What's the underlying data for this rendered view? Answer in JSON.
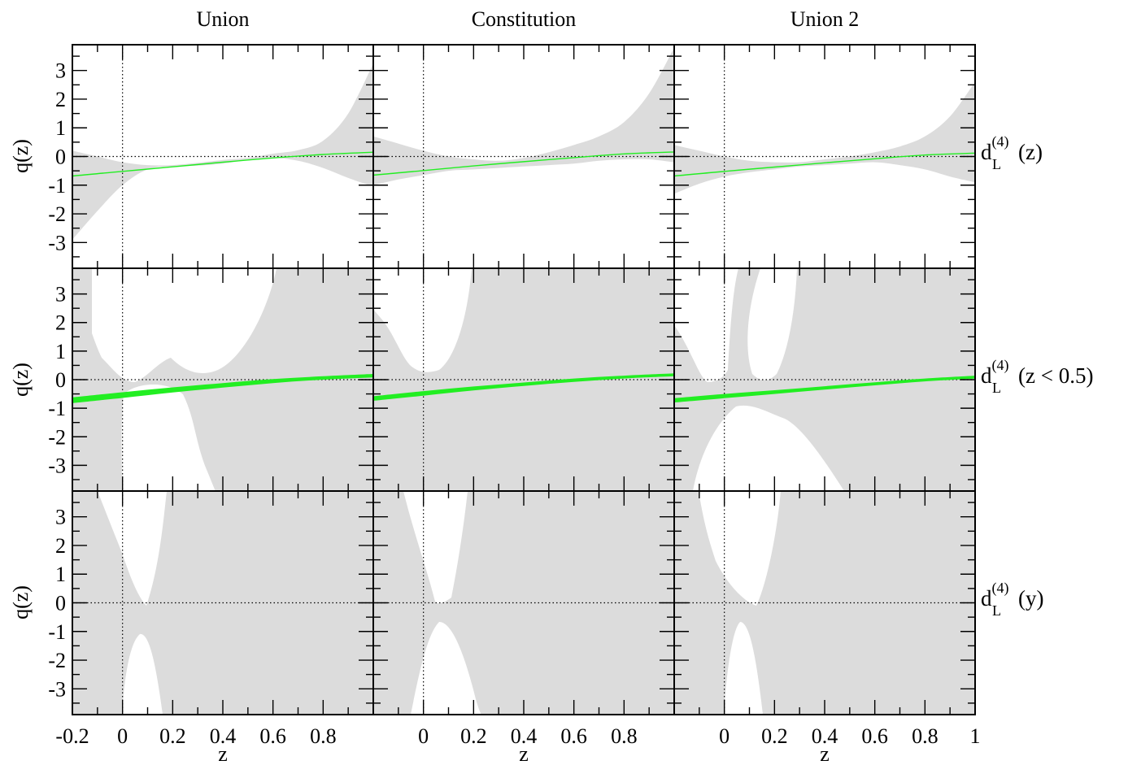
{
  "figure": {
    "column_titles": [
      "Union",
      "Constitution",
      "Union 2"
    ],
    "row_labels": [
      {
        "main": "d",
        "sub": "L",
        "sup": "(4)",
        "arg": "(z)"
      },
      {
        "main": "d",
        "sub": "L",
        "sup": "(4)",
        "arg": "(z < 0.5)"
      },
      {
        "main": "d",
        "sub": "L",
        "sup": "(4)",
        "arg": "(y)"
      }
    ],
    "ylabel": "q(z)",
    "xlabel": "z",
    "x_tick_labels": [
      [
        "-0.2",
        "0",
        "0.2",
        "0.4",
        "0.6",
        "0.8"
      ],
      [
        "0",
        "0.2",
        "0.4",
        "0.6",
        "0.8"
      ],
      [
        "0",
        "0.2",
        "0.4",
        "0.6",
        "0.8",
        "1"
      ]
    ],
    "y_tick_labels": [
      "3",
      "2",
      "1",
      "0",
      "-1",
      "-2",
      "-3"
    ]
  },
  "chart_data": {
    "type": "area",
    "layout": "3x3 grid",
    "xlim": [
      -0.2,
      1.0
    ],
    "ylim": [
      -3.9,
      3.9
    ],
    "x_major_ticks": [
      -0.2,
      0,
      0.2,
      0.4,
      0.6,
      0.8,
      1.0
    ],
    "y_major_ticks": [
      -3,
      -2,
      -1,
      0,
      1,
      2,
      3
    ],
    "reference_lines": {
      "x": 0,
      "y": 0
    },
    "colors": {
      "band": "#dcdcdc",
      "fit": "#22ee22",
      "axes": "#000000"
    },
    "panels": [
      {
        "row": 0,
        "col": 0,
        "band": [
          [
            -0.2,
            -2.9,
            0.2
          ],
          [
            -0.1,
            -1.9,
            0.0
          ],
          [
            0.0,
            -1.0,
            -0.2
          ],
          [
            0.1,
            -0.45,
            -0.3
          ],
          [
            0.2,
            -0.35,
            -0.3
          ],
          [
            0.3,
            -0.32,
            -0.22
          ],
          [
            0.4,
            -0.25,
            -0.12
          ],
          [
            0.5,
            -0.12,
            -0.05
          ],
          [
            0.6,
            -0.05,
            0.1
          ],
          [
            0.7,
            -0.15,
            0.22
          ],
          [
            0.8,
            -0.4,
            0.55
          ],
          [
            0.9,
            -0.75,
            1.5
          ],
          [
            1.0,
            -1.05,
            3.25
          ]
        ],
        "fit": [
          [
            -0.2,
            -0.7,
            -0.66
          ],
          [
            0.0,
            -0.54,
            -0.5
          ],
          [
            0.2,
            -0.38,
            -0.34
          ],
          [
            0.4,
            -0.22,
            -0.18
          ],
          [
            0.6,
            -0.07,
            -0.03
          ],
          [
            0.8,
            0.05,
            0.09
          ],
          [
            1.0,
            0.13,
            0.17
          ]
        ]
      },
      {
        "row": 0,
        "col": 1,
        "band": [
          [
            -0.2,
            -1.0,
            0.7
          ],
          [
            -0.1,
            -0.8,
            0.45
          ],
          [
            0.0,
            -0.65,
            0.2
          ],
          [
            0.1,
            -0.5,
            0.0
          ],
          [
            0.2,
            -0.45,
            -0.1
          ],
          [
            0.3,
            -0.4,
            -0.15
          ],
          [
            0.4,
            -0.35,
            -0.05
          ],
          [
            0.5,
            -0.3,
            0.15
          ],
          [
            0.6,
            -0.25,
            0.4
          ],
          [
            0.7,
            -0.15,
            0.7
          ],
          [
            0.8,
            -0.1,
            1.2
          ],
          [
            0.9,
            -0.1,
            2.2
          ],
          [
            1.0,
            -0.2,
            3.8
          ]
        ],
        "fit": [
          [
            -0.2,
            -0.67,
            -0.63
          ],
          [
            0.0,
            -0.51,
            -0.47
          ],
          [
            0.2,
            -0.35,
            -0.31
          ],
          [
            0.4,
            -0.2,
            -0.16
          ],
          [
            0.6,
            -0.06,
            -0.02
          ],
          [
            0.8,
            0.07,
            0.11
          ],
          [
            1.0,
            0.14,
            0.18
          ]
        ]
      },
      {
        "row": 0,
        "col": 2,
        "band": [
          [
            -0.2,
            -1.3,
            0.4
          ],
          [
            -0.1,
            -0.95,
            0.2
          ],
          [
            0.0,
            -0.7,
            0.0
          ],
          [
            0.1,
            -0.55,
            -0.15
          ],
          [
            0.2,
            -0.45,
            -0.2
          ],
          [
            0.3,
            -0.35,
            -0.2
          ],
          [
            0.4,
            -0.3,
            -0.1
          ],
          [
            0.5,
            -0.25,
            0.0
          ],
          [
            0.6,
            -0.2,
            0.15
          ],
          [
            0.7,
            -0.3,
            0.35
          ],
          [
            0.8,
            -0.45,
            0.7
          ],
          [
            0.9,
            -0.7,
            1.4
          ],
          [
            1.0,
            -0.9,
            2.6
          ]
        ],
        "fit": [
          [
            -0.2,
            -0.7,
            -0.66
          ],
          [
            0.0,
            -0.54,
            -0.5
          ],
          [
            0.2,
            -0.39,
            -0.35
          ],
          [
            0.4,
            -0.24,
            -0.2
          ],
          [
            0.6,
            -0.1,
            -0.06
          ],
          [
            0.8,
            0.03,
            0.07
          ],
          [
            1.0,
            0.1,
            0.14
          ]
        ]
      },
      {
        "row": 1,
        "col": 0,
        "band": "excluded-region",
        "fit": [
          [
            -0.2,
            -0.82,
            -0.62
          ],
          [
            0.0,
            -0.64,
            -0.44
          ],
          [
            0.2,
            -0.45,
            -0.27
          ],
          [
            0.4,
            -0.28,
            -0.12
          ],
          [
            0.6,
            -0.12,
            0.02
          ],
          [
            0.8,
            0.0,
            0.12
          ],
          [
            1.0,
            0.08,
            0.2
          ]
        ]
      },
      {
        "row": 1,
        "col": 1,
        "band": "excluded-region",
        "fit": [
          [
            -0.2,
            -0.74,
            -0.58
          ],
          [
            0.0,
            -0.56,
            -0.4
          ],
          [
            0.2,
            -0.38,
            -0.24
          ],
          [
            0.4,
            -0.22,
            -0.1
          ],
          [
            0.6,
            -0.08,
            0.04
          ],
          [
            0.8,
            0.04,
            0.14
          ],
          [
            1.0,
            0.12,
            0.22
          ]
        ]
      },
      {
        "row": 1,
        "col": 2,
        "band": "excluded-region",
        "fit": [
          [
            -0.2,
            -0.8,
            -0.65
          ],
          [
            0.0,
            -0.65,
            -0.5
          ],
          [
            0.2,
            -0.5,
            -0.37
          ],
          [
            0.4,
            -0.35,
            -0.23
          ],
          [
            0.6,
            -0.2,
            -0.09
          ],
          [
            0.8,
            -0.06,
            0.04
          ],
          [
            1.0,
            0.04,
            0.14
          ]
        ]
      },
      {
        "row": 2,
        "col": 0,
        "band": "excluded-region",
        "fit": null
      },
      {
        "row": 2,
        "col": 1,
        "band": "excluded-region",
        "fit": null
      },
      {
        "row": 2,
        "col": 2,
        "band": "excluded-region",
        "fit": null
      }
    ]
  }
}
